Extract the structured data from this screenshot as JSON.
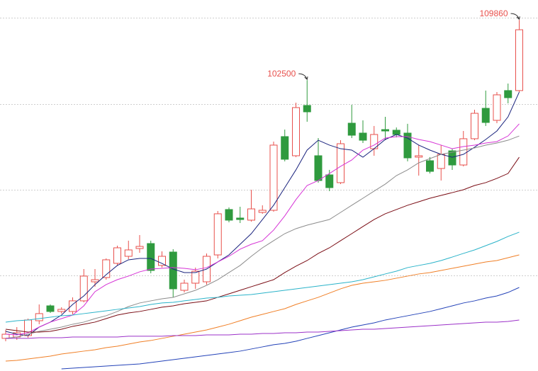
{
  "chart_data": {
    "type": "candlestick",
    "ylim": [
      66920,
      112300
    ],
    "up_color": "#e8504c",
    "down_color": "#2f9a3e",
    "label_color": "#e8504c",
    "open": [
      70910,
      71080,
      71250,
      73070,
      74890,
      74200,
      74200,
      75500,
      77830,
      78350,
      80090,
      80950,
      81900,
      82510,
      79830,
      81470,
      76790,
      77660,
      77830,
      81120,
      86670,
      85630,
      85370,
      86320,
      86580,
      95590,
      93250,
      99400,
      93250,
      90910,
      89960,
      97230,
      96020,
      94110,
      96450,
      96370,
      96020,
      93080,
      92640,
      91690,
      93850,
      92120,
      95330,
      99050,
      97580,
      101220,
      101220
    ],
    "high": [
      71940,
      72290,
      73330,
      75060,
      75060,
      74720,
      75930,
      79390,
      79390,
      80690,
      82250,
      82860,
      83550,
      82860,
      81560,
      81820,
      78090,
      79570,
      81300,
      86490,
      86930,
      87010,
      89090,
      87190,
      94980,
      96450,
      99740,
      102500,
      95410,
      91520,
      95150,
      99480,
      97580,
      96890,
      98010,
      96710,
      97150,
      94550,
      93080,
      94550,
      94110,
      96280,
      98880,
      101220,
      101040,
      102080,
      109860
    ],
    "low": [
      70560,
      70730,
      70990,
      72640,
      74020,
      73940,
      73850,
      75320,
      77230,
      78090,
      79830,
      80600,
      81380,
      78870,
      79570,
      75930,
      76530,
      76970,
      77490,
      80690,
      85110,
      85020,
      85190,
      86150,
      86410,
      92560,
      93080,
      97410,
      89960,
      88920,
      89780,
      95410,
      94810,
      93250,
      95150,
      95500,
      92560,
      90820,
      91080,
      90220,
      91520,
      91950,
      95150,
      96890,
      97230,
      99660,
      101040
    ],
    "close": [
      71420,
      71600,
      73160,
      73940,
      74200,
      74460,
      75500,
      78530,
      78090,
      80520,
      81990,
      81730,
      82160,
      79220,
      80950,
      76970,
      77660,
      79130,
      80950,
      86150,
      85370,
      85450,
      86750,
      86580,
      94550,
      92820,
      99140,
      98620,
      90220,
      89350,
      94720,
      95760,
      95150,
      95850,
      96280,
      95850,
      92990,
      93250,
      91340,
      93420,
      92120,
      95330,
      98440,
      97320,
      100700,
      100350,
      108660
    ],
    "high_labels": [
      null,
      null,
      null,
      null,
      null,
      null,
      null,
      null,
      null,
      null,
      null,
      null,
      null,
      null,
      null,
      null,
      null,
      null,
      null,
      null,
      null,
      null,
      null,
      null,
      null,
      null,
      null,
      "102500",
      null,
      null,
      null,
      null,
      null,
      null,
      null,
      null,
      null,
      null,
      null,
      null,
      null,
      null,
      null,
      null,
      null,
      null,
      "109860"
    ],
    "moving_averages": [
      {
        "color": "#1a237e",
        "values": [
          71770,
          71420,
          71250,
          72290,
          72900,
          73760,
          75060,
          76100,
          77490,
          78700,
          79830,
          80520,
          80690,
          80690,
          80080,
          79390,
          78960,
          78960,
          79390,
          80260,
          81120,
          82420,
          83720,
          85450,
          87190,
          89350,
          91520,
          93940,
          95150,
          94550,
          94110,
          93940,
          93070,
          94110,
          95240,
          95850,
          95410,
          94550,
          93940,
          93420,
          93070,
          93420,
          94290,
          95240,
          96280,
          98010,
          101040
        ]
      },
      {
        "color": "#d633d6",
        "values": [
          71420,
          71340,
          71600,
          72290,
          72900,
          73330,
          73760,
          74890,
          76620,
          77490,
          78090,
          78530,
          79050,
          79390,
          79480,
          79570,
          79480,
          79310,
          79570,
          80260,
          80950,
          81820,
          82420,
          82860,
          84160,
          85890,
          87880,
          89610,
          90220,
          91080,
          91950,
          92730,
          93940,
          94550,
          95410,
          95590,
          95590,
          95240,
          94980,
          94550,
          94110,
          94370,
          94550,
          94810,
          94980,
          95670,
          97150
        ]
      },
      {
        "color": "#8c8c8c",
        "values": [
          70910,
          71080,
          71420,
          71770,
          72030,
          72290,
          72640,
          72900,
          73330,
          73680,
          74200,
          74800,
          75240,
          75500,
          75750,
          75930,
          76360,
          76790,
          77400,
          78090,
          78960,
          79830,
          80950,
          81990,
          82860,
          83720,
          84330,
          84760,
          85110,
          85450,
          86320,
          87190,
          88050,
          88920,
          89780,
          90820,
          91520,
          92380,
          92900,
          93420,
          93680,
          93940,
          94200,
          94550,
          94810,
          95150,
          95670
        ]
      },
      {
        "color": "#7a0c14",
        "values": [
          72030,
          71860,
          71680,
          71680,
          71770,
          72030,
          72380,
          72640,
          72900,
          73330,
          73760,
          74020,
          74200,
          74460,
          74720,
          74890,
          75150,
          75320,
          75500,
          75930,
          76360,
          76790,
          77230,
          77660,
          78090,
          78960,
          79740,
          80430,
          81300,
          81990,
          82860,
          83720,
          84590,
          85450,
          86150,
          86670,
          87190,
          87620,
          88050,
          88400,
          88740,
          89090,
          89610,
          89960,
          90480,
          91080,
          93070
        ]
      },
      {
        "color": "#2ab3c9",
        "values": [
          72900,
          73070,
          73160,
          73330,
          73500,
          73680,
          73760,
          73940,
          74110,
          74280,
          74460,
          74630,
          74800,
          75060,
          75240,
          75320,
          75500,
          75670,
          75840,
          75930,
          76100,
          76190,
          76270,
          76450,
          76620,
          76790,
          76970,
          77140,
          77310,
          77490,
          77660,
          77830,
          78090,
          78440,
          78790,
          79130,
          79570,
          79830,
          80080,
          80430,
          80860,
          81300,
          81730,
          82250,
          82770,
          83380,
          83900
        ]
      },
      {
        "color": "#f07f26",
        "values": [
          68130,
          68220,
          68390,
          68570,
          68740,
          69000,
          69170,
          69350,
          69520,
          69780,
          69950,
          70210,
          70470,
          70650,
          70910,
          71170,
          71420,
          71680,
          71940,
          72290,
          72640,
          73070,
          73500,
          73850,
          74200,
          74540,
          75060,
          75500,
          75930,
          76450,
          76970,
          77400,
          77660,
          77830,
          78010,
          78270,
          78530,
          78790,
          78960,
          79220,
          79480,
          79740,
          80000,
          80260,
          80430,
          80780,
          81120
        ]
      },
      {
        "color": "#2342b8",
        "values": [
          null,
          null,
          null,
          null,
          null,
          67180,
          67270,
          67350,
          67440,
          67530,
          67610,
          67700,
          67790,
          67960,
          68130,
          68310,
          68480,
          68650,
          68830,
          69000,
          69170,
          69350,
          69610,
          69870,
          70130,
          70300,
          70560,
          70910,
          71250,
          71600,
          71940,
          72290,
          72550,
          72810,
          73160,
          73420,
          73680,
          73940,
          74200,
          74540,
          74890,
          75240,
          75500,
          75840,
          76100,
          76530,
          77140
        ]
      },
      {
        "color": "#9b30c8",
        "values": [
          70910,
          70910,
          70910,
          70990,
          70990,
          70990,
          71080,
          71080,
          71080,
          71080,
          71080,
          71170,
          71170,
          71170,
          71170,
          71250,
          71250,
          71250,
          71340,
          71340,
          71340,
          71420,
          71420,
          71510,
          71510,
          71600,
          71600,
          71680,
          71680,
          71770,
          71860,
          71940,
          72030,
          72030,
          72120,
          72200,
          72290,
          72380,
          72460,
          72550,
          72640,
          72720,
          72810,
          72900,
          72900,
          72980,
          73160
        ]
      }
    ]
  }
}
